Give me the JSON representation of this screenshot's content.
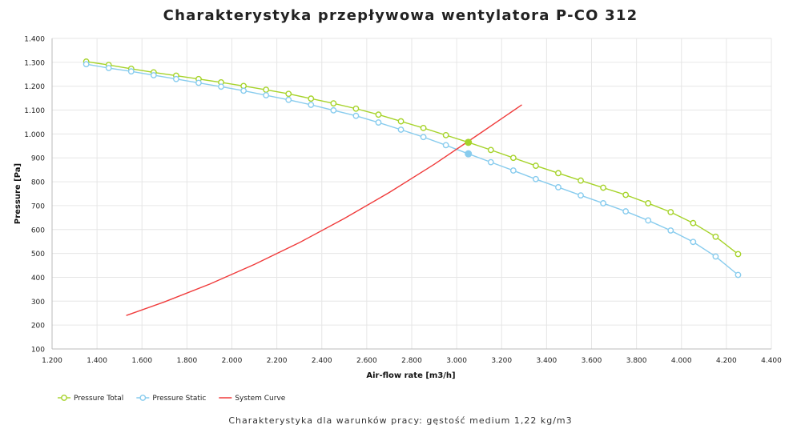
{
  "chart_data": {
    "type": "line",
    "title": "Charakterystyka przepływowa wentylatora P-CO 312",
    "subtitle": "Charakterystyka dla warunków pracy: gęstość medium 1,22 kg/m3",
    "xlabel": "Air-flow rate [m3/h]",
    "ylabel": "Pressure [Pa]",
    "xlim": [
      1200,
      4400
    ],
    "ylim": [
      100,
      1400
    ],
    "x_ticks": [
      1200,
      1400,
      1600,
      1800,
      2000,
      2200,
      2400,
      2600,
      2800,
      3000,
      3200,
      3400,
      3600,
      3800,
      4000,
      4200,
      4400
    ],
    "x_tick_labels": [
      "1.200",
      "1.400",
      "1.600",
      "1.800",
      "2.000",
      "2.200",
      "2.400",
      "2.600",
      "2.800",
      "3.000",
      "3.200",
      "3.400",
      "3.600",
      "3.800",
      "4.000",
      "4.200",
      "4.400"
    ],
    "y_ticks": [
      100,
      200,
      300,
      400,
      500,
      600,
      700,
      800,
      900,
      1000,
      1100,
      1200,
      1300,
      1400
    ],
    "y_tick_labels": [
      "100",
      "200",
      "300",
      "400",
      "500",
      "600",
      "700",
      "800",
      "900",
      "1.000",
      "1.100",
      "1.200",
      "1.300",
      "1.400"
    ],
    "grid": true,
    "legend_position": "bottom-left",
    "series": [
      {
        "name": "Pressure Total",
        "color": "#a6d32a",
        "marker": "open-circle",
        "x": [
          1352,
          1452,
          1552,
          1652,
          1752,
          1852,
          1952,
          2052,
          2152,
          2252,
          2352,
          2452,
          2552,
          2652,
          2752,
          2852,
          2952,
          3052,
          3152,
          3252,
          3352,
          3452,
          3552,
          3652,
          3752,
          3852,
          3952,
          4052,
          4152,
          4252
        ],
        "y": [
          1303,
          1289,
          1273,
          1258,
          1244,
          1230,
          1216,
          1201,
          1185,
          1168,
          1148,
          1128,
          1106,
          1081,
          1053,
          1025,
          995,
          965,
          933,
          900,
          867,
          836,
          805,
          775,
          745,
          710,
          673,
          627,
          570,
          497
        ]
      },
      {
        "name": "Pressure Static",
        "color": "#88ccee",
        "marker": "open-circle",
        "x": [
          1352,
          1452,
          1552,
          1652,
          1752,
          1852,
          1952,
          2052,
          2152,
          2252,
          2352,
          2452,
          2552,
          2652,
          2752,
          2852,
          2952,
          3052,
          3152,
          3252,
          3352,
          3452,
          3552,
          3652,
          3752,
          3852,
          3952,
          4052,
          4152,
          4252
        ],
        "y": [
          1292,
          1276,
          1262,
          1246,
          1230,
          1214,
          1198,
          1181,
          1162,
          1143,
          1122,
          1099,
          1076,
          1048,
          1018,
          987,
          953,
          917,
          882,
          847,
          811,
          777,
          743,
          710,
          676,
          638,
          596,
          548,
          487,
          410
        ]
      },
      {
        "name": "System Curve",
        "color": "#f03c3c",
        "marker": "none",
        "x": [
          1530,
          1700,
          1900,
          2100,
          2300,
          2500,
          2700,
          2900,
          3100,
          3290
        ],
        "y": [
          240,
          297,
          371,
          454,
          545,
          646,
          755,
          873,
          1000,
          1122
        ]
      }
    ],
    "operating_points": [
      {
        "series": "Pressure Total",
        "x": 3052,
        "y": 965
      },
      {
        "series": "Pressure Static",
        "x": 3052,
        "y": 917
      }
    ]
  }
}
